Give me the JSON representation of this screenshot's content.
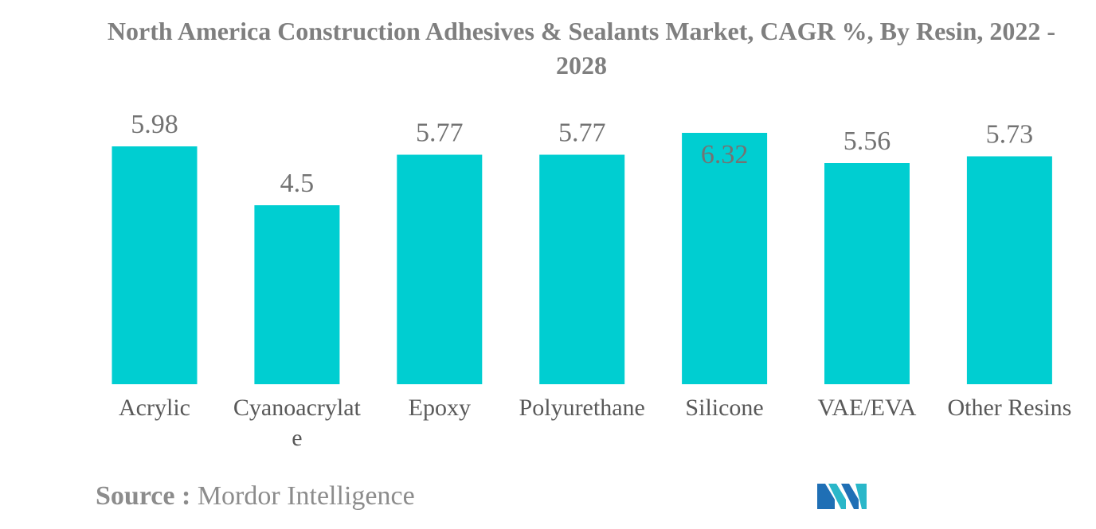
{
  "chart_data": {
    "type": "bar",
    "title": "North America Construction Adhesives & Sealants Market, CAGR %, By Resin, 2022 - 2028",
    "categories": [
      "Acrylic",
      "Cyanoacrylate",
      "Epoxy",
      "Polyurethane",
      "Silicone",
      "VAE/EVA",
      "Other Resins"
    ],
    "category_lines": [
      [
        "Acrylic"
      ],
      [
        "Cyanoacrylat",
        "e"
      ],
      [
        "Epoxy"
      ],
      [
        "Polyurethane"
      ],
      [
        "Silicone"
      ],
      [
        "VAE/EVA"
      ],
      [
        "Other Resins"
      ]
    ],
    "values": [
      5.98,
      4.5,
      5.77,
      5.77,
      6.32,
      5.56,
      5.73
    ],
    "value_labels": [
      "5.98",
      "4.5",
      "5.77",
      "5.77",
      "6.32",
      "5.56",
      "5.73"
    ],
    "xlabel": "",
    "ylabel": "",
    "ylim": [
      0,
      6.32
    ],
    "bar_color": "#00ced1",
    "grid": false,
    "legend": "none"
  },
  "source": {
    "key": "Source :",
    "value": "Mordor Intelligence"
  },
  "logo": {
    "icon": "mordor-intelligence-logo-icon",
    "colors": [
      "#1f6fb5",
      "#2ab7c9"
    ]
  }
}
